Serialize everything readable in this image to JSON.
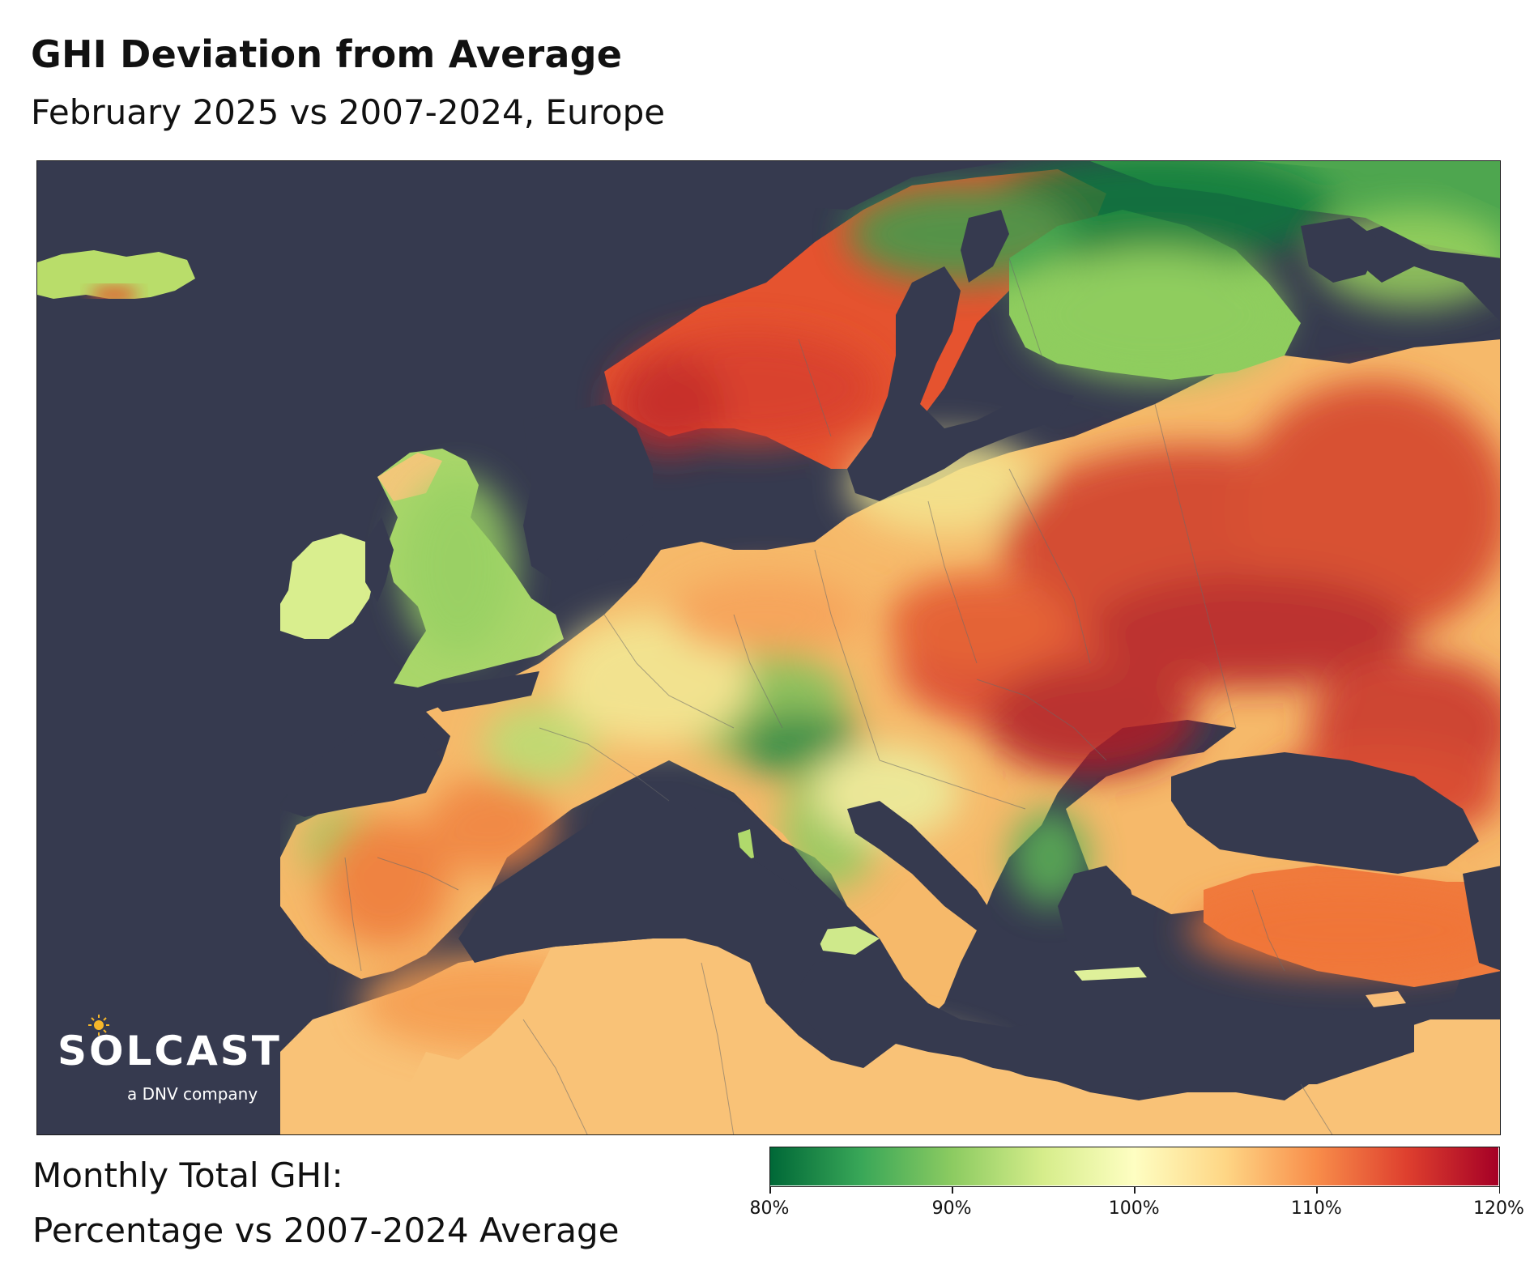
{
  "header": {
    "title": "GHI Deviation from Average",
    "subtitle": "February 2025 vs 2007-2024, Europe"
  },
  "logo": {
    "name": "SOLCAST",
    "tagline": "a DNV company"
  },
  "legend": {
    "title_line1": "Monthly Total GHI:",
    "title_line2": "Percentage vs 2007-2024 Average",
    "colorbar": {
      "stops": [
        {
          "value": 80,
          "color": "#006837"
        },
        {
          "value": 90,
          "color": "#8ccb61"
        },
        {
          "value": 100,
          "color": "#fefec2"
        },
        {
          "value": 110,
          "color": "#f88d4a"
        },
        {
          "value": 120,
          "color": "#a50026"
        }
      ],
      "ticks": [
        {
          "value": 80,
          "label": "80%"
        },
        {
          "value": 90,
          "label": "90%"
        },
        {
          "value": 100,
          "label": "100%"
        },
        {
          "value": 110,
          "label": "110%"
        },
        {
          "value": 120,
          "label": "120%"
        }
      ]
    }
  },
  "map": {
    "sea_color": "#363a4f",
    "region": "Europe"
  }
}
